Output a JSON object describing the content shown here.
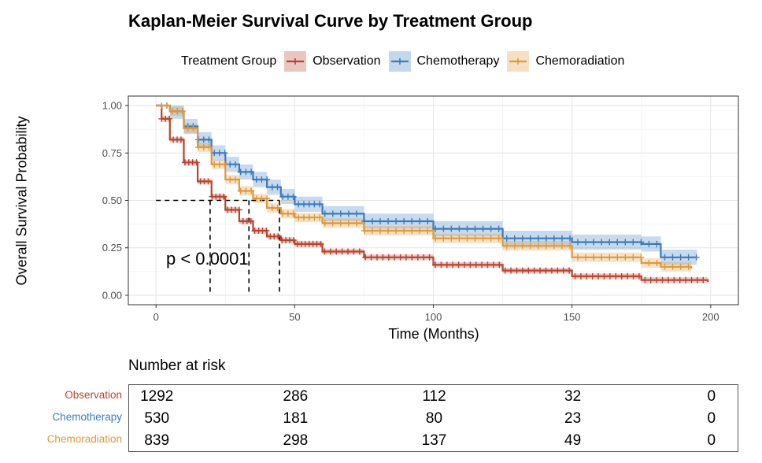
{
  "colors": {
    "Observation": "#b8432f",
    "Chemotherapy": "#3a7bbd",
    "Chemoradiation": "#e0983a"
  },
  "chart_data": {
    "type": "line",
    "title": "Kaplan-Meier Survival Curve by Treatment Group",
    "xlabel": "Time (Months)",
    "ylabel": "Overall Survival Probability",
    "xlim": [
      -10,
      210
    ],
    "ylim": [
      -0.05,
      1.05
    ],
    "x_ticks": [
      0,
      50,
      100,
      150,
      200
    ],
    "y_ticks": [
      0.0,
      0.25,
      0.5,
      0.75,
      1.0
    ],
    "y_tick_labels": [
      "0.00",
      "0.25",
      "0.50",
      "0.75",
      "1.00"
    ],
    "grid": true,
    "legend": {
      "title": "Treatment Group",
      "placement": "top",
      "entries": [
        "Observation",
        "Chemotherapy",
        "Chemoradiation"
      ]
    },
    "series": [
      {
        "name": "Observation",
        "x": [
          0,
          2,
          5,
          10,
          15,
          20,
          25,
          30,
          35,
          40,
          45,
          50,
          60,
          75,
          100,
          125,
          150,
          175,
          199
        ],
        "y": [
          1.0,
          0.93,
          0.82,
          0.7,
          0.6,
          0.52,
          0.45,
          0.39,
          0.34,
          0.31,
          0.29,
          0.27,
          0.23,
          0.2,
          0.16,
          0.13,
          0.1,
          0.08,
          0.07
        ],
        "ci_half_width": 0.015
      },
      {
        "name": "Chemotherapy",
        "x": [
          0,
          5,
          10,
          15,
          20,
          25,
          30,
          35,
          40,
          45,
          50,
          60,
          75,
          100,
          125,
          150,
          175,
          181,
          182,
          195
        ],
        "y": [
          1.0,
          0.97,
          0.89,
          0.82,
          0.75,
          0.69,
          0.65,
          0.61,
          0.57,
          0.52,
          0.48,
          0.43,
          0.39,
          0.35,
          0.3,
          0.28,
          0.27,
          0.27,
          0.2,
          0.2
        ],
        "ci_half_width": 0.04
      },
      {
        "name": "Chemoradiation",
        "x": [
          0,
          5,
          10,
          15,
          20,
          25,
          30,
          35,
          40,
          45,
          50,
          60,
          75,
          100,
          125,
          150,
          175,
          182,
          193
        ],
        "y": [
          1.0,
          0.97,
          0.88,
          0.78,
          0.69,
          0.61,
          0.55,
          0.51,
          0.46,
          0.43,
          0.41,
          0.38,
          0.34,
          0.3,
          0.26,
          0.2,
          0.17,
          0.15,
          0.14
        ],
        "ci_half_width": 0.025
      }
    ],
    "median_lines": {
      "y": 0.5,
      "x": [
        19.5,
        33.5,
        44.5
      ]
    },
    "annotations": [
      "p < 0.0001"
    ]
  },
  "risk_table": {
    "title": "Number at risk",
    "times": [
      0,
      50,
      100,
      150,
      200
    ],
    "rows": [
      {
        "label": "Observation",
        "values": [
          "1292",
          "286",
          "112",
          "32",
          "0"
        ]
      },
      {
        "label": "Chemotherapy",
        "values": [
          "530",
          "181",
          "80",
          "23",
          "0"
        ]
      },
      {
        "label": "Chemoradiation",
        "values": [
          "839",
          "298",
          "137",
          "49",
          "0"
        ]
      }
    ]
  }
}
